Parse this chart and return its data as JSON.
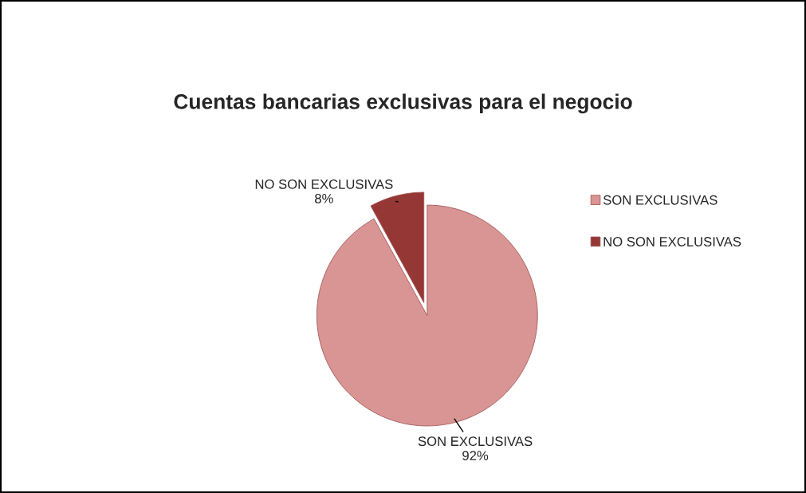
{
  "chart_data": {
    "type": "pie",
    "title": "Cuentas bancarias exclusivas para el negocio",
    "categories": [
      "SON EXCLUSIVAS",
      "NO SON EXCLUSIVAS"
    ],
    "values": [
      92,
      8
    ],
    "value_labels": [
      "92%",
      "8%"
    ],
    "colors": [
      "#d99594",
      "#953735"
    ],
    "legend": "right"
  }
}
